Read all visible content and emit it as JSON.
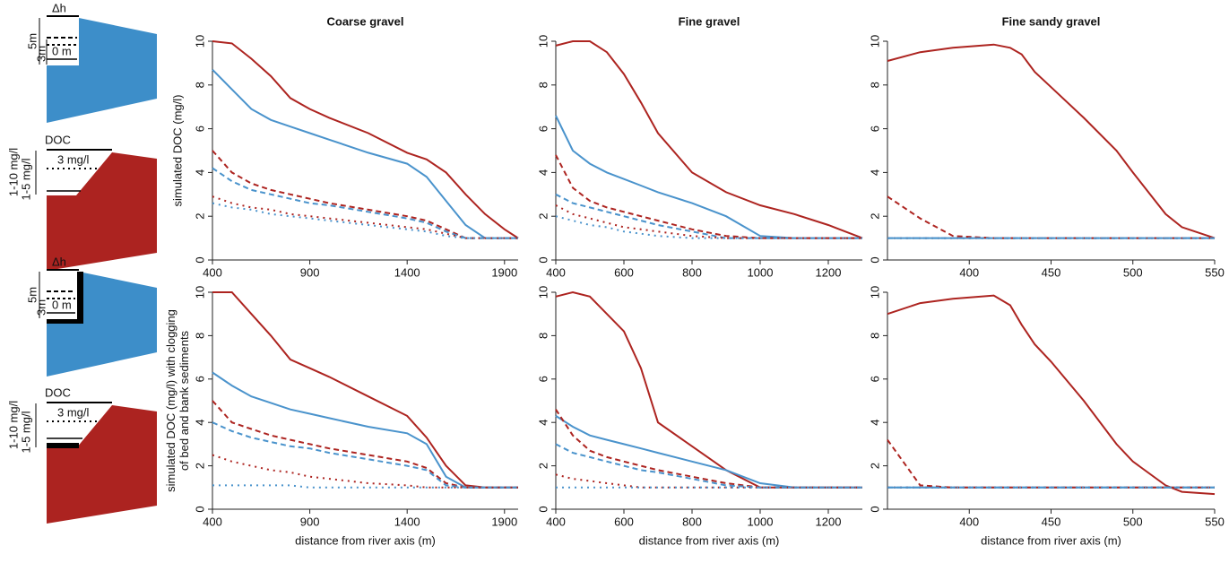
{
  "diagram": {
    "water": [
      "Δh",
      "5m",
      "3m",
      "0 m"
    ],
    "doc": [
      "DOC",
      "1-10 mg/l",
      "1-5 mg/l",
      "3 mg/l"
    ]
  },
  "chart_data": [
    {
      "type": "line",
      "title": "Coarse gravel",
      "ylabel": [
        "simulated DOC (mg/l)"
      ],
      "x": [
        400,
        500,
        600,
        700,
        800,
        900,
        1000,
        1200,
        1400,
        1500,
        1600,
        1700,
        1800,
        1900,
        1970
      ],
      "xlim": [
        400,
        1970
      ],
      "xticks": [
        400,
        900,
        1400,
        1900
      ],
      "ylim": [
        0,
        10
      ],
      "yticks": [
        0,
        2,
        4,
        6,
        8,
        10
      ],
      "series": [
        {
          "color": "#ad2420",
          "dash": "solid",
          "values": [
            10,
            9.9,
            9.2,
            8.4,
            7.4,
            6.9,
            6.5,
            5.8,
            4.9,
            4.6,
            4.0,
            3.0,
            2.1,
            1.4,
            1.0
          ]
        },
        {
          "color": "#4a93cc",
          "dash": "solid",
          "values": [
            8.7,
            7.8,
            6.9,
            6.4,
            6.1,
            5.8,
            5.5,
            4.9,
            4.4,
            3.8,
            2.7,
            1.6,
            1.0,
            1.0,
            1.0
          ]
        },
        {
          "color": "#ad2420",
          "dash": "dashed",
          "values": [
            5.0,
            4.0,
            3.5,
            3.2,
            3.0,
            2.8,
            2.6,
            2.3,
            2.0,
            1.8,
            1.4,
            1.0,
            1.0,
            1.0,
            1.0
          ]
        },
        {
          "color": "#4a93cc",
          "dash": "dashed",
          "values": [
            4.2,
            3.6,
            3.2,
            3.0,
            2.8,
            2.6,
            2.5,
            2.2,
            1.9,
            1.7,
            1.3,
            1.0,
            1.0,
            1.0,
            1.0
          ]
        },
        {
          "color": "#ad2420",
          "dash": "dotted",
          "values": [
            2.9,
            2.6,
            2.4,
            2.3,
            2.1,
            2.0,
            1.9,
            1.7,
            1.5,
            1.4,
            1.2,
            1.0,
            1.0,
            1.0,
            1.0
          ]
        },
        {
          "color": "#4a93cc",
          "dash": "dotted",
          "values": [
            2.6,
            2.4,
            2.3,
            2.1,
            2.0,
            1.9,
            1.8,
            1.6,
            1.4,
            1.3,
            1.1,
            1.0,
            1.0,
            1.0,
            1.0
          ]
        }
      ]
    },
    {
      "type": "line",
      "title": "Fine gravel",
      "x": [
        400,
        450,
        500,
        550,
        600,
        650,
        700,
        800,
        900,
        1000,
        1100,
        1200,
        1300
      ],
      "xlim": [
        400,
        1300
      ],
      "xticks": [
        400,
        600,
        800,
        1000,
        1200
      ],
      "ylim": [
        0,
        10
      ],
      "yticks": [
        0,
        2,
        4,
        6,
        8,
        10
      ],
      "series": [
        {
          "color": "#ad2420",
          "dash": "solid",
          "values": [
            9.8,
            10,
            10,
            9.5,
            8.5,
            7.2,
            5.8,
            4.0,
            3.1,
            2.5,
            2.1,
            1.6,
            1.0
          ]
        },
        {
          "color": "#4a93cc",
          "dash": "solid",
          "values": [
            6.6,
            5.0,
            4.4,
            4.0,
            3.7,
            3.4,
            3.1,
            2.6,
            2.0,
            1.1,
            1.0,
            1.0,
            1.0
          ]
        },
        {
          "color": "#ad2420",
          "dash": "dashed",
          "values": [
            4.8,
            3.3,
            2.7,
            2.4,
            2.2,
            2.0,
            1.8,
            1.4,
            1.1,
            1.0,
            1.0,
            1.0,
            1.0
          ]
        },
        {
          "color": "#4a93cc",
          "dash": "dashed",
          "values": [
            3.0,
            2.6,
            2.4,
            2.2,
            2.0,
            1.8,
            1.6,
            1.3,
            1.0,
            1.0,
            1.0,
            1.0,
            1.0
          ]
        },
        {
          "color": "#ad2420",
          "dash": "dotted",
          "values": [
            2.5,
            2.1,
            1.9,
            1.7,
            1.5,
            1.4,
            1.3,
            1.1,
            1.0,
            1.0,
            1.0,
            1.0,
            1.0
          ]
        },
        {
          "color": "#4a93cc",
          "dash": "dotted",
          "values": [
            2.0,
            1.8,
            1.6,
            1.5,
            1.3,
            1.2,
            1.1,
            1.0,
            1.0,
            1.0,
            1.0,
            1.0,
            1.0
          ]
        }
      ]
    },
    {
      "type": "line",
      "title": "Fine sandy gravel",
      "x": [
        350,
        370,
        390,
        415,
        425,
        432,
        440,
        450,
        470,
        490,
        500,
        520,
        530,
        550
      ],
      "xlim": [
        350,
        550
      ],
      "xticks": [
        400,
        450,
        500,
        550
      ],
      "ylim": [
        0,
        10
      ],
      "yticks": [
        0,
        2,
        4,
        6,
        8,
        10
      ],
      "series": [
        {
          "color": "#ad2420",
          "dash": "solid",
          "values": [
            9.1,
            9.5,
            9.7,
            9.85,
            9.7,
            9.4,
            8.6,
            7.9,
            6.5,
            5.0,
            4.0,
            2.1,
            1.5,
            1.0
          ]
        },
        {
          "color": "#4a93cc",
          "dash": "solid",
          "values": [
            1.0,
            1.0,
            1.0,
            1.0,
            1.0,
            1.0,
            1.0,
            1.0,
            1.0,
            1.0,
            1.0,
            1.0,
            1.0,
            1.0
          ]
        },
        {
          "color": "#ad2420",
          "dash": "dashed",
          "values": [
            2.9,
            1.9,
            1.1,
            1.0,
            1.0,
            1.0,
            1.0,
            1.0,
            1.0,
            1.0,
            1.0,
            1.0,
            1.0,
            1.0
          ]
        },
        {
          "color": "#4a93cc",
          "dash": "dashed",
          "values": [
            1.0,
            1.0,
            1.0,
            1.0,
            1.0,
            1.0,
            1.0,
            1.0,
            1.0,
            1.0,
            1.0,
            1.0,
            1.0,
            1.0
          ]
        },
        {
          "color": "#ad2420",
          "dash": "dotted",
          "values": [
            1.0,
            1.0,
            1.0,
            1.0,
            1.0,
            1.0,
            1.0,
            1.0,
            1.0,
            1.0,
            1.0,
            1.0,
            1.0,
            1.0
          ]
        },
        {
          "color": "#4a93cc",
          "dash": "dotted",
          "values": [
            1.0,
            1.0,
            1.0,
            1.0,
            1.0,
            1.0,
            1.0,
            1.0,
            1.0,
            1.0,
            1.0,
            1.0,
            1.0,
            1.0
          ]
        }
      ]
    },
    {
      "type": "line",
      "xlabel": "distance from river axis (m)",
      "ylabel": [
        "simulated DOC (mg/l) with clogging",
        "of bed and bank sediments"
      ],
      "x": [
        400,
        500,
        600,
        700,
        800,
        900,
        1000,
        1200,
        1400,
        1500,
        1600,
        1700,
        1800,
        1900,
        1970
      ],
      "xlim": [
        400,
        1970
      ],
      "xticks": [
        400,
        900,
        1400,
        1900
      ],
      "ylim": [
        0,
        10
      ],
      "yticks": [
        0,
        2,
        4,
        6,
        8,
        10
      ],
      "series": [
        {
          "color": "#ad2420",
          "dash": "solid",
          "values": [
            10,
            10,
            9.0,
            8.0,
            6.9,
            6.5,
            6.1,
            5.2,
            4.3,
            3.3,
            2.0,
            1.1,
            1.0,
            1.0,
            1.0
          ]
        },
        {
          "color": "#4a93cc",
          "dash": "solid",
          "values": [
            6.3,
            5.7,
            5.2,
            4.9,
            4.6,
            4.4,
            4.2,
            3.8,
            3.5,
            3.0,
            1.5,
            1.0,
            1.0,
            1.0,
            1.0
          ]
        },
        {
          "color": "#ad2420",
          "dash": "dashed",
          "values": [
            5.0,
            4.0,
            3.7,
            3.4,
            3.2,
            3.0,
            2.8,
            2.5,
            2.2,
            1.9,
            1.2,
            1.0,
            1.0,
            1.0,
            1.0
          ]
        },
        {
          "color": "#4a93cc",
          "dash": "dashed",
          "values": [
            4.0,
            3.6,
            3.3,
            3.1,
            2.9,
            2.8,
            2.6,
            2.3,
            2.0,
            1.8,
            1.1,
            1.0,
            1.0,
            1.0,
            1.0
          ]
        },
        {
          "color": "#ad2420",
          "dash": "dotted",
          "values": [
            2.5,
            2.2,
            2.0,
            1.8,
            1.7,
            1.5,
            1.4,
            1.2,
            1.1,
            1.0,
            1.0,
            1.0,
            1.0,
            1.0,
            1.0
          ]
        },
        {
          "color": "#4a93cc",
          "dash": "dotted",
          "values": [
            1.1,
            1.1,
            1.1,
            1.1,
            1.1,
            1.0,
            1.0,
            1.0,
            1.0,
            1.0,
            1.0,
            1.0,
            1.0,
            1.0,
            1.0
          ]
        }
      ]
    },
    {
      "type": "line",
      "xlabel": "distance from river axis (m)",
      "x": [
        400,
        450,
        500,
        550,
        600,
        650,
        700,
        800,
        900,
        1000,
        1100,
        1200,
        1300
      ],
      "xlim": [
        400,
        1300
      ],
      "xticks": [
        400,
        600,
        800,
        1000,
        1200
      ],
      "ylim": [
        0,
        10
      ],
      "yticks": [
        0,
        2,
        4,
        6,
        8,
        10
      ],
      "series": [
        {
          "color": "#ad2420",
          "dash": "solid",
          "values": [
            9.8,
            10,
            9.8,
            9.0,
            8.2,
            6.5,
            4.0,
            2.9,
            1.8,
            1.0,
            1.0,
            1.0,
            1.0
          ]
        },
        {
          "color": "#4a93cc",
          "dash": "solid",
          "values": [
            4.3,
            3.8,
            3.4,
            3.2,
            3.0,
            2.8,
            2.6,
            2.2,
            1.8,
            1.2,
            1.0,
            1.0,
            1.0
          ]
        },
        {
          "color": "#ad2420",
          "dash": "dashed",
          "values": [
            4.6,
            3.4,
            2.7,
            2.4,
            2.2,
            2.0,
            1.8,
            1.5,
            1.2,
            1.0,
            1.0,
            1.0,
            1.0
          ]
        },
        {
          "color": "#4a93cc",
          "dash": "dashed",
          "values": [
            3.0,
            2.6,
            2.4,
            2.2,
            2.0,
            1.8,
            1.7,
            1.4,
            1.1,
            1.0,
            1.0,
            1.0,
            1.0
          ]
        },
        {
          "color": "#ad2420",
          "dash": "dotted",
          "values": [
            1.6,
            1.4,
            1.3,
            1.2,
            1.1,
            1.0,
            1.0,
            1.0,
            1.0,
            1.0,
            1.0,
            1.0,
            1.0
          ]
        },
        {
          "color": "#4a93cc",
          "dash": "dotted",
          "values": [
            1.0,
            1.0,
            1.0,
            1.0,
            1.0,
            1.0,
            1.0,
            1.0,
            1.0,
            1.0,
            1.0,
            1.0,
            1.0
          ]
        }
      ]
    },
    {
      "type": "line",
      "xlabel": "distance from river axis (m)",
      "x": [
        350,
        370,
        390,
        415,
        425,
        432,
        440,
        450,
        470,
        490,
        500,
        520,
        530,
        550
      ],
      "xlim": [
        350,
        550
      ],
      "xticks": [
        400,
        450,
        500,
        550
      ],
      "ylim": [
        0,
        10
      ],
      "yticks": [
        0,
        2,
        4,
        6,
        8,
        10
      ],
      "series": [
        {
          "color": "#ad2420",
          "dash": "solid",
          "values": [
            9.0,
            9.5,
            9.7,
            9.85,
            9.4,
            8.5,
            7.6,
            6.8,
            5.0,
            3.0,
            2.2,
            1.1,
            0.8,
            0.7
          ]
        },
        {
          "color": "#4a93cc",
          "dash": "solid",
          "values": [
            1.0,
            1.0,
            1.0,
            1.0,
            1.0,
            1.0,
            1.0,
            1.0,
            1.0,
            1.0,
            1.0,
            1.0,
            1.0,
            1.0
          ]
        },
        {
          "color": "#ad2420",
          "dash": "dashed",
          "values": [
            3.2,
            1.1,
            1.0,
            1.0,
            1.0,
            1.0,
            1.0,
            1.0,
            1.0,
            1.0,
            1.0,
            1.0,
            1.0,
            1.0
          ]
        },
        {
          "color": "#4a93cc",
          "dash": "dashed",
          "values": [
            1.0,
            1.0,
            1.0,
            1.0,
            1.0,
            1.0,
            1.0,
            1.0,
            1.0,
            1.0,
            1.0,
            1.0,
            1.0,
            1.0
          ]
        },
        {
          "color": "#ad2420",
          "dash": "dotted",
          "values": [
            1.0,
            1.0,
            1.0,
            1.0,
            1.0,
            1.0,
            1.0,
            1.0,
            1.0,
            1.0,
            1.0,
            1.0,
            1.0,
            1.0
          ]
        },
        {
          "color": "#4a93cc",
          "dash": "dotted",
          "values": [
            1.0,
            1.0,
            1.0,
            1.0,
            1.0,
            1.0,
            1.0,
            1.0,
            1.0,
            1.0,
            1.0,
            1.0,
            1.0,
            1.0
          ]
        }
      ]
    }
  ]
}
